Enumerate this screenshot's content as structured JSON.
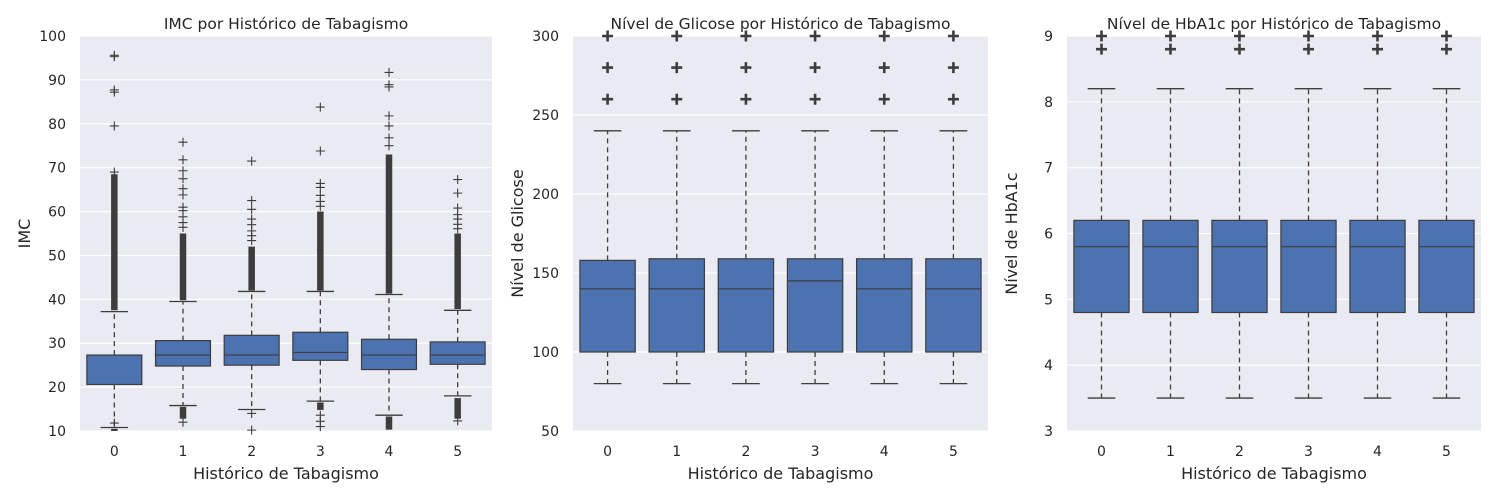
{
  "chart_data": [
    {
      "type": "box",
      "title": "IMC por Histórico de Tabagismo",
      "xlabel": "Histórico de Tabagismo",
      "ylabel": "IMC",
      "categories": [
        "0",
        "1",
        "2",
        "3",
        "4",
        "5"
      ],
      "ylim": [
        10,
        100
      ],
      "yticks": [
        10,
        20,
        30,
        40,
        50,
        60,
        70,
        80,
        90,
        100
      ],
      "grid": true,
      "box_color": "#4c72b0",
      "flier_style": "thin",
      "boxes": [
        {
          "category": "0",
          "whislo": 10.8,
          "q1": 20.6,
          "med": 27.3,
          "q3": 27.3,
          "whishi": 37.2,
          "dense_fliers": [
            [
              37.5,
              68.5
            ],
            [
              10.0,
              10.5
            ]
          ],
          "fliers": [
            95.6,
            95.3,
            87.7,
            87.2,
            79.5,
            69.0,
            11.8
          ]
        },
        {
          "category": "1",
          "whislo": 15.8,
          "q1": 24.8,
          "med": 27.3,
          "q3": 30.6,
          "whishi": 39.5,
          "dense_fliers": [
            [
              39.8,
              55.0
            ],
            [
              12.8,
              15.5
            ]
          ],
          "fliers": [
            75.8,
            71.8,
            69.3,
            67.5,
            65.2,
            63.8,
            61.0,
            60.2,
            58.8,
            57.5,
            56.4,
            12.0
          ]
        },
        {
          "category": "2",
          "whislo": 14.9,
          "q1": 25.0,
          "med": 27.3,
          "q3": 31.8,
          "whishi": 41.8,
          "dense_fliers": [
            [
              42.0,
              52.0
            ]
          ],
          "fliers": [
            71.5,
            62.5,
            60.5,
            58.3,
            57.0,
            55.6,
            54.5,
            53.4,
            14.0,
            10.2
          ]
        },
        {
          "category": "3",
          "whislo": 16.8,
          "q1": 26.1,
          "med": 27.9,
          "q3": 32.5,
          "whishi": 41.8,
          "dense_fliers": [
            [
              42.0,
              60.0
            ],
            [
              14.8,
              16.5
            ]
          ],
          "fliers": [
            83.8,
            73.8,
            66.4,
            65.5,
            63.7,
            62.3,
            61.2,
            13.6,
            12.2,
            11.0
          ]
        },
        {
          "category": "4",
          "whislo": 13.6,
          "q1": 24.0,
          "med": 27.3,
          "q3": 30.9,
          "whishi": 41.1,
          "dense_fliers": [
            [
              41.3,
              73.0
            ],
            [
              10.3,
              13.3
            ]
          ],
          "fliers": [
            91.7,
            88.9,
            88.4,
            81.8,
            79.5,
            76.8,
            75.0
          ]
        },
        {
          "category": "5",
          "whislo": 18.0,
          "q1": 25.2,
          "med": 27.3,
          "q3": 30.3,
          "whishi": 37.5,
          "dense_fliers": [
            [
              37.8,
              55.0
            ],
            [
              12.8,
              17.5
            ]
          ],
          "fliers": [
            67.3,
            64.2,
            60.8,
            59.3,
            58.3,
            57.1,
            56.1,
            12.3
          ]
        }
      ]
    },
    {
      "type": "box",
      "title": "Nível de Glicose por Histórico de Tabagismo",
      "xlabel": "Histórico de Tabagismo",
      "ylabel": "Nível de Glicose",
      "categories": [
        "0",
        "1",
        "2",
        "3",
        "4",
        "5"
      ],
      "ylim": [
        50,
        300
      ],
      "yticks": [
        50,
        100,
        150,
        200,
        250,
        300
      ],
      "grid": true,
      "box_color": "#4c72b0",
      "flier_style": "bold",
      "boxes": [
        {
          "category": "0",
          "whislo": 80,
          "q1": 100,
          "med": 140,
          "q3": 158,
          "whishi": 240,
          "dense_fliers": [],
          "fliers": [
            260,
            280,
            300
          ]
        },
        {
          "category": "1",
          "whislo": 80,
          "q1": 100,
          "med": 140,
          "q3": 159,
          "whishi": 240,
          "dense_fliers": [],
          "fliers": [
            260,
            280,
            300
          ]
        },
        {
          "category": "2",
          "whislo": 80,
          "q1": 100,
          "med": 140,
          "q3": 159,
          "whishi": 240,
          "dense_fliers": [],
          "fliers": [
            260,
            280,
            300
          ]
        },
        {
          "category": "3",
          "whislo": 80,
          "q1": 100,
          "med": 145,
          "q3": 159,
          "whishi": 240,
          "dense_fliers": [],
          "fliers": [
            260,
            280,
            300
          ]
        },
        {
          "category": "4",
          "whislo": 80,
          "q1": 100,
          "med": 140,
          "q3": 159,
          "whishi": 240,
          "dense_fliers": [],
          "fliers": [
            260,
            280,
            300
          ]
        },
        {
          "category": "5",
          "whislo": 80,
          "q1": 100,
          "med": 140,
          "q3": 159,
          "whishi": 240,
          "dense_fliers": [],
          "fliers": [
            260,
            280,
            300
          ]
        }
      ]
    },
    {
      "type": "box",
      "title": "Nível de HbA1c por Histórico de Tabagismo",
      "xlabel": "Histórico de Tabagismo",
      "ylabel": "Nível de HbA1c",
      "categories": [
        "0",
        "1",
        "2",
        "3",
        "4",
        "5"
      ],
      "ylim": [
        3,
        9
      ],
      "yticks": [
        3,
        4,
        5,
        6,
        7,
        8,
        9
      ],
      "grid": true,
      "box_color": "#4c72b0",
      "flier_style": "bold",
      "boxes": [
        {
          "category": "0",
          "whislo": 3.5,
          "q1": 4.8,
          "med": 5.8,
          "q3": 6.2,
          "whishi": 8.2,
          "dense_fliers": [],
          "fliers": [
            8.8,
            9.0
          ]
        },
        {
          "category": "1",
          "whislo": 3.5,
          "q1": 4.8,
          "med": 5.8,
          "q3": 6.2,
          "whishi": 8.2,
          "dense_fliers": [],
          "fliers": [
            8.8,
            9.0
          ]
        },
        {
          "category": "2",
          "whislo": 3.5,
          "q1": 4.8,
          "med": 5.8,
          "q3": 6.2,
          "whishi": 8.2,
          "dense_fliers": [],
          "fliers": [
            8.8,
            9.0
          ]
        },
        {
          "category": "3",
          "whislo": 3.5,
          "q1": 4.8,
          "med": 5.8,
          "q3": 6.2,
          "whishi": 8.2,
          "dense_fliers": [],
          "fliers": [
            8.8,
            9.0
          ]
        },
        {
          "category": "4",
          "whislo": 3.5,
          "q1": 4.8,
          "med": 5.8,
          "q3": 6.2,
          "whishi": 8.2,
          "dense_fliers": [],
          "fliers": [
            8.8,
            9.0
          ]
        },
        {
          "category": "5",
          "whislo": 3.5,
          "q1": 4.8,
          "med": 5.8,
          "q3": 6.2,
          "whishi": 8.2,
          "dense_fliers": [],
          "fliers": [
            8.8,
            9.0
          ]
        }
      ]
    }
  ]
}
